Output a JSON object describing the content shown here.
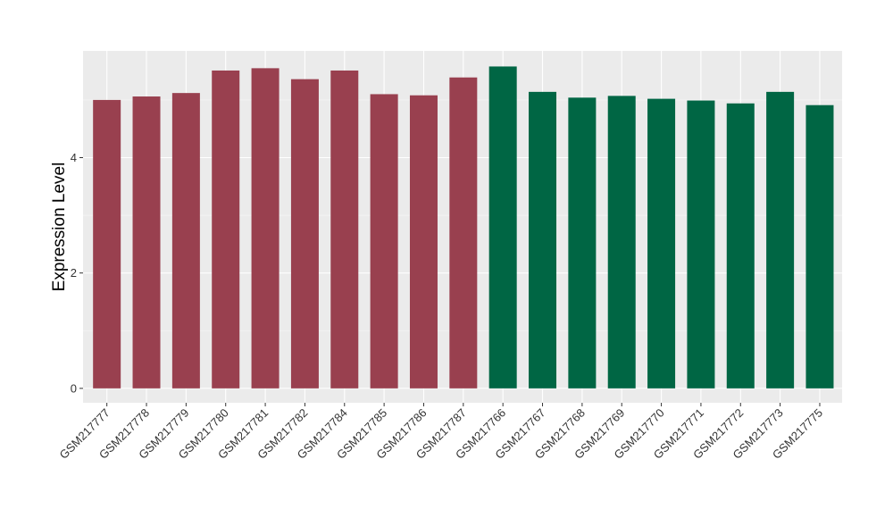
{
  "chart_data": {
    "type": "bar",
    "ylabel": "Expression Level",
    "xlabel": "",
    "ylim": [
      -0.25,
      5.85
    ],
    "yticks": [
      0,
      2,
      4
    ],
    "ytick_labels": [
      "0",
      "2",
      "4"
    ],
    "grid": true,
    "panel_background": "#EBEBEB",
    "categories": [
      "GSM217777",
      "GSM217778",
      "GSM217779",
      "GSM217780",
      "GSM217781",
      "GSM217782",
      "GSM217784",
      "GSM217785",
      "GSM217786",
      "GSM217787",
      "GSM217766",
      "GSM217767",
      "GSM217768",
      "GSM217769",
      "GSM217770",
      "GSM217771",
      "GSM217772",
      "GSM217773",
      "GSM217775"
    ],
    "values": [
      5.0,
      5.06,
      5.12,
      5.51,
      5.55,
      5.36,
      5.51,
      5.1,
      5.08,
      5.39,
      5.58,
      5.14,
      5.04,
      5.07,
      5.02,
      4.99,
      4.94,
      5.14,
      4.91
    ],
    "bar_colors": [
      "#99404F",
      "#99404F",
      "#99404F",
      "#99404F",
      "#99404F",
      "#99404F",
      "#99404F",
      "#99404F",
      "#99404F",
      "#99404F",
      "#006644",
      "#006644",
      "#006644",
      "#006644",
      "#006644",
      "#006644",
      "#006644",
      "#006644",
      "#006644"
    ]
  }
}
